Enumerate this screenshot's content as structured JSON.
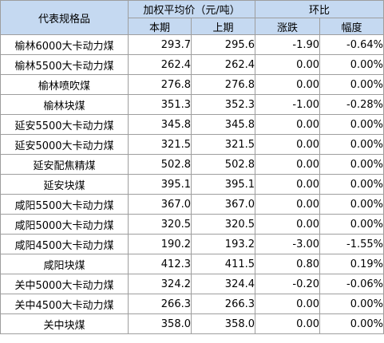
{
  "table": {
    "header": {
      "name_col": "代表规格品",
      "price_group": "加权平均价（元/吨）",
      "mom_group": "环比",
      "current": "本期",
      "previous": "上期",
      "change": "涨跌",
      "range": "幅度"
    },
    "header_bg": "#c5d9f1",
    "rows": [
      {
        "name": "榆林6000大卡动力煤",
        "current": "293.7",
        "previous": "295.6",
        "change": "-1.90",
        "range": "-0.64%"
      },
      {
        "name": "榆林5500大卡动力煤",
        "current": "262.4",
        "previous": "262.4",
        "change": "0.00",
        "range": "0.00%"
      },
      {
        "name": "榆林喷吹煤",
        "current": "276.8",
        "previous": "276.8",
        "change": "0.00",
        "range": "0.00%"
      },
      {
        "name": "榆林块煤",
        "current": "351.3",
        "previous": "352.3",
        "change": "-1.00",
        "range": "-0.28%"
      },
      {
        "name": "延安5500大卡动力煤",
        "current": "345.8",
        "previous": "345.8",
        "change": "0.00",
        "range": "0.00%"
      },
      {
        "name": "延安5000大卡动力煤",
        "current": "321.5",
        "previous": "321.5",
        "change": "0.00",
        "range": "0.00%"
      },
      {
        "name": "延安配焦精煤",
        "current": "502.8",
        "previous": "502.8",
        "change": "0.00",
        "range": "0.00%"
      },
      {
        "name": "延安块煤",
        "current": "395.1",
        "previous": "395.1",
        "change": "0.00",
        "range": "0.00%"
      },
      {
        "name": "咸阳5500大卡动力煤",
        "current": "367.0",
        "previous": "367.0",
        "change": "0.00",
        "range": "0.00%"
      },
      {
        "name": "咸阳5000大卡动力煤",
        "current": "320.5",
        "previous": "320.5",
        "change": "0.00",
        "range": "0.00%"
      },
      {
        "name": "咸阳4500大卡动力煤",
        "current": "190.2",
        "previous": "193.2",
        "change": "-3.00",
        "range": "-1.55%"
      },
      {
        "name": "咸阳块煤",
        "current": "412.3",
        "previous": "411.5",
        "change": "0.80",
        "range": "0.19%"
      },
      {
        "name": "关中5000大卡动力煤",
        "current": "324.2",
        "previous": "324.4",
        "change": "-0.20",
        "range": "-0.06%"
      },
      {
        "name": "关中4500大卡动力煤",
        "current": "266.3",
        "previous": "266.3",
        "change": "0.00",
        "range": "0.00%"
      },
      {
        "name": "关中块煤",
        "current": "358.0",
        "previous": "358.0",
        "change": "0.00",
        "range": "0.00%"
      }
    ]
  }
}
